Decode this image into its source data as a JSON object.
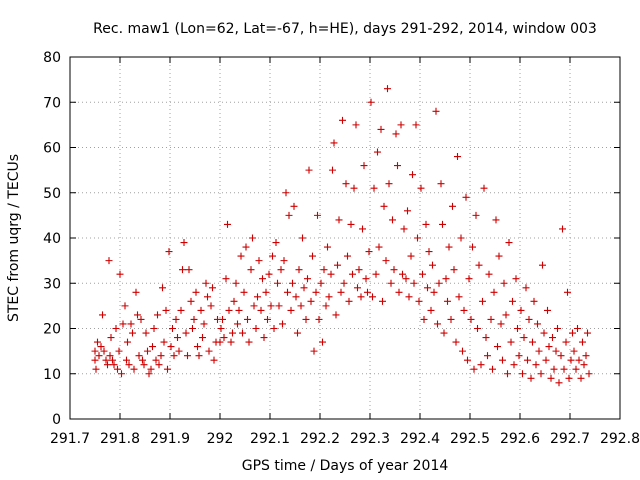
{
  "chart_data": {
    "type": "scatter",
    "title": "Rec. maw1 (Lon=62, Lat=-67, h=HE), days 291-292, 2014, window 003",
    "xlabel": "GPS time / Days of year 2014",
    "ylabel": "STEC from uqrg / TECUs",
    "xlim": [
      291.7,
      292.8
    ],
    "ylim": [
      0,
      80
    ],
    "xticks": [
      "291.7",
      "291.8",
      "291.9",
      "292",
      "292.1",
      "292.2",
      "292.3",
      "292.4",
      "292.5",
      "292.6",
      "292.7",
      "292.8"
    ],
    "yticks": [
      "0",
      "10",
      "20",
      "30",
      "40",
      "50",
      "60",
      "70",
      "80"
    ],
    "grid": true,
    "marker": "plus",
    "colors": {
      "points": "#cc0000",
      "grid": "#a0a0a0",
      "frame": "#000000"
    },
    "series": [
      {
        "points": [
          [
            291.75,
            15
          ],
          [
            291.75,
            13
          ],
          [
            291.752,
            11
          ],
          [
            291.755,
            17
          ],
          [
            291.758,
            14
          ],
          [
            291.762,
            16
          ],
          [
            291.765,
            23
          ],
          [
            291.768,
            15
          ],
          [
            291.772,
            13
          ],
          [
            291.775,
            12
          ],
          [
            291.778,
            35
          ],
          [
            291.78,
            14
          ],
          [
            291.782,
            18
          ],
          [
            291.785,
            13
          ],
          [
            291.788,
            12
          ],
          [
            291.792,
            20
          ],
          [
            291.795,
            11
          ],
          [
            291.798,
            15
          ],
          [
            291.8,
            32
          ],
          [
            291.803,
            10
          ],
          [
            291.806,
            21
          ],
          [
            291.81,
            25
          ],
          [
            291.813,
            13
          ],
          [
            291.815,
            17
          ],
          [
            291.818,
            12
          ],
          [
            291.822,
            21
          ],
          [
            291.825,
            19
          ],
          [
            291.828,
            11
          ],
          [
            291.832,
            28
          ],
          [
            291.835,
            23
          ],
          [
            291.838,
            14
          ],
          [
            291.842,
            22
          ],
          [
            291.845,
            13
          ],
          [
            291.848,
            12
          ],
          [
            291.852,
            19
          ],
          [
            291.855,
            15
          ],
          [
            291.858,
            10
          ],
          [
            291.862,
            11
          ],
          [
            291.865,
            16
          ],
          [
            291.868,
            20
          ],
          [
            291.872,
            13
          ],
          [
            291.875,
            23
          ],
          [
            291.878,
            12
          ],
          [
            291.882,
            14
          ],
          [
            291.885,
            29
          ],
          [
            291.888,
            17
          ],
          [
            291.892,
            24
          ],
          [
            291.895,
            11
          ],
          [
            291.898,
            37
          ],
          [
            291.902,
            16
          ],
          [
            291.905,
            20
          ],
          [
            291.908,
            14
          ],
          [
            291.912,
            22
          ],
          [
            291.915,
            18
          ],
          [
            291.918,
            15
          ],
          [
            291.922,
            24
          ],
          [
            291.925,
            33
          ],
          [
            291.928,
            39
          ],
          [
            291.932,
            19
          ],
          [
            291.935,
            14
          ],
          [
            291.938,
            33
          ],
          [
            291.942,
            26
          ],
          [
            291.945,
            20
          ],
          [
            291.948,
            22
          ],
          [
            291.952,
            28
          ],
          [
            291.955,
            16
          ],
          [
            291.958,
            14
          ],
          [
            291.962,
            24
          ],
          [
            291.965,
            18
          ],
          [
            291.968,
            21
          ],
          [
            291.972,
            30
          ],
          [
            291.975,
            27
          ],
          [
            291.978,
            15
          ],
          [
            291.982,
            25
          ],
          [
            291.985,
            29
          ],
          [
            291.988,
            13
          ],
          [
            291.992,
            17
          ],
          [
            291.995,
            22
          ],
          [
            292.0,
            17
          ],
          [
            292.002,
            20
          ],
          [
            292.005,
            22
          ],
          [
            292.008,
            18
          ],
          [
            292.012,
            31
          ],
          [
            292.015,
            43
          ],
          [
            292.018,
            24
          ],
          [
            292.022,
            17
          ],
          [
            292.025,
            19
          ],
          [
            292.028,
            26
          ],
          [
            292.032,
            30
          ],
          [
            292.035,
            21
          ],
          [
            292.038,
            24
          ],
          [
            292.042,
            36
          ],
          [
            292.045,
            19
          ],
          [
            292.048,
            28
          ],
          [
            292.052,
            38
          ],
          [
            292.055,
            22
          ],
          [
            292.058,
            17
          ],
          [
            292.062,
            33
          ],
          [
            292.065,
            40
          ],
          [
            292.068,
            25
          ],
          [
            292.072,
            20
          ],
          [
            292.075,
            27
          ],
          [
            292.078,
            35
          ],
          [
            292.082,
            24
          ],
          [
            292.085,
            31
          ],
          [
            292.088,
            18
          ],
          [
            292.092,
            28
          ],
          [
            292.095,
            22
          ],
          [
            292.098,
            32
          ],
          [
            292.102,
            25
          ],
          [
            292.105,
            36
          ],
          [
            292.108,
            20
          ],
          [
            292.112,
            39
          ],
          [
            292.115,
            30
          ],
          [
            292.118,
            25
          ],
          [
            292.122,
            33
          ],
          [
            292.125,
            21
          ],
          [
            292.128,
            35
          ],
          [
            292.132,
            50
          ],
          [
            292.135,
            28
          ],
          [
            292.138,
            45
          ],
          [
            292.142,
            24
          ],
          [
            292.145,
            30
          ],
          [
            292.148,
            47
          ],
          [
            292.152,
            27
          ],
          [
            292.155,
            19
          ],
          [
            292.158,
            33
          ],
          [
            292.162,
            25
          ],
          [
            292.165,
            40
          ],
          [
            292.168,
            29
          ],
          [
            292.172,
            22
          ],
          [
            292.175,
            31
          ],
          [
            292.178,
            55
          ],
          [
            292.182,
            26
          ],
          [
            292.185,
            36
          ],
          [
            292.188,
            15
          ],
          [
            292.192,
            28
          ],
          [
            292.195,
            45
          ],
          [
            292.198,
            22
          ],
          [
            292.202,
            30
          ],
          [
            292.205,
            17
          ],
          [
            292.208,
            33
          ],
          [
            292.212,
            25
          ],
          [
            292.215,
            38
          ],
          [
            292.218,
            27
          ],
          [
            292.222,
            32
          ],
          [
            292.225,
            55
          ],
          [
            292.228,
            61
          ],
          [
            292.232,
            23
          ],
          [
            292.235,
            34
          ],
          [
            292.238,
            44
          ],
          [
            292.242,
            28
          ],
          [
            292.245,
            66
          ],
          [
            292.248,
            30
          ],
          [
            292.252,
            52
          ],
          [
            292.255,
            36
          ],
          [
            292.258,
            26
          ],
          [
            292.262,
            43
          ],
          [
            292.265,
            32
          ],
          [
            292.268,
            51
          ],
          [
            292.272,
            65
          ],
          [
            292.275,
            29
          ],
          [
            292.278,
            33
          ],
          [
            292.282,
            27
          ],
          [
            292.285,
            42
          ],
          [
            292.288,
            56
          ],
          [
            292.292,
            31
          ],
          [
            292.295,
            28
          ],
          [
            292.298,
            37
          ],
          [
            292.302,
            70
          ],
          [
            292.305,
            27
          ],
          [
            292.308,
            51
          ],
          [
            292.312,
            32
          ],
          [
            292.315,
            59
          ],
          [
            292.318,
            38
          ],
          [
            292.322,
            64
          ],
          [
            292.325,
            26
          ],
          [
            292.328,
            47
          ],
          [
            292.332,
            35
          ],
          [
            292.335,
            73
          ],
          [
            292.338,
            52
          ],
          [
            292.342,
            30
          ],
          [
            292.345,
            44
          ],
          [
            292.348,
            33
          ],
          [
            292.352,
            63
          ],
          [
            292.355,
            56
          ],
          [
            292.358,
            28
          ],
          [
            292.362,
            65
          ],
          [
            292.365,
            32
          ],
          [
            292.368,
            42
          ],
          [
            292.372,
            31
          ],
          [
            292.375,
            46
          ],
          [
            292.378,
            27
          ],
          [
            292.382,
            36
          ],
          [
            292.385,
            54
          ],
          [
            292.388,
            30
          ],
          [
            292.392,
            65
          ],
          [
            292.395,
            40
          ],
          [
            292.398,
            26
          ],
          [
            292.402,
            51
          ],
          [
            292.405,
            32
          ],
          [
            292.408,
            22
          ],
          [
            292.412,
            43
          ],
          [
            292.415,
            29
          ],
          [
            292.418,
            37
          ],
          [
            292.422,
            24
          ],
          [
            292.425,
            34
          ],
          [
            292.428,
            28
          ],
          [
            292.432,
            68
          ],
          [
            292.435,
            21
          ],
          [
            292.438,
            30
          ],
          [
            292.442,
            52
          ],
          [
            292.445,
            43
          ],
          [
            292.448,
            19
          ],
          [
            292.452,
            31
          ],
          [
            292.455,
            26
          ],
          [
            292.458,
            38
          ],
          [
            292.462,
            22
          ],
          [
            292.465,
            47
          ],
          [
            292.468,
            33
          ],
          [
            292.472,
            17
          ],
          [
            292.475,
            58
          ],
          [
            292.478,
            27
          ],
          [
            292.482,
            40
          ],
          [
            292.485,
            15
          ],
          [
            292.488,
            24
          ],
          [
            292.492,
            49
          ],
          [
            292.495,
            13
          ],
          [
            292.498,
            31
          ],
          [
            292.502,
            22
          ],
          [
            292.505,
            38
          ],
          [
            292.508,
            11
          ],
          [
            292.512,
            45
          ],
          [
            292.515,
            20
          ],
          [
            292.518,
            34
          ],
          [
            292.522,
            12
          ],
          [
            292.525,
            26
          ],
          [
            292.528,
            51
          ],
          [
            292.532,
            18
          ],
          [
            292.535,
            14
          ],
          [
            292.538,
            32
          ],
          [
            292.542,
            22
          ],
          [
            292.545,
            11
          ],
          [
            292.548,
            28
          ],
          [
            292.552,
            44
          ],
          [
            292.555,
            16
          ],
          [
            292.558,
            36
          ],
          [
            292.562,
            21
          ],
          [
            292.565,
            13
          ],
          [
            292.568,
            30
          ],
          [
            292.572,
            23
          ],
          [
            292.575,
            10
          ],
          [
            292.578,
            39
          ],
          [
            292.582,
            17
          ],
          [
            292.585,
            26
          ],
          [
            292.588,
            12
          ],
          [
            292.592,
            31
          ],
          [
            292.595,
            20
          ],
          [
            292.598,
            14
          ],
          [
            292.602,
            24
          ],
          [
            292.605,
            10
          ],
          [
            292.608,
            18
          ],
          [
            292.612,
            29
          ],
          [
            292.615,
            13
          ],
          [
            292.618,
            22
          ],
          [
            292.622,
            9
          ],
          [
            292.625,
            17
          ],
          [
            292.628,
            26
          ],
          [
            292.632,
            12
          ],
          [
            292.635,
            21
          ],
          [
            292.638,
            15
          ],
          [
            292.642,
            10
          ],
          [
            292.645,
            34
          ],
          [
            292.648,
            19
          ],
          [
            292.652,
            13
          ],
          [
            292.655,
            24
          ],
          [
            292.658,
            16
          ],
          [
            292.662,
            9
          ],
          [
            292.665,
            18
          ],
          [
            292.668,
            11
          ],
          [
            292.672,
            15
          ],
          [
            292.675,
            20
          ],
          [
            292.678,
            8
          ],
          [
            292.682,
            14
          ],
          [
            292.685,
            42
          ],
          [
            292.688,
            11
          ],
          [
            292.692,
            17
          ],
          [
            292.695,
            28
          ],
          [
            292.698,
            9
          ],
          [
            292.702,
            13
          ],
          [
            292.705,
            19
          ],
          [
            292.708,
            15
          ],
          [
            292.712,
            11
          ],
          [
            292.715,
            20
          ],
          [
            292.718,
            13
          ],
          [
            292.722,
            9
          ],
          [
            292.725,
            17
          ],
          [
            292.728,
            12
          ],
          [
            292.732,
            14
          ],
          [
            292.735,
            19
          ],
          [
            292.738,
            10
          ]
        ]
      }
    ]
  }
}
